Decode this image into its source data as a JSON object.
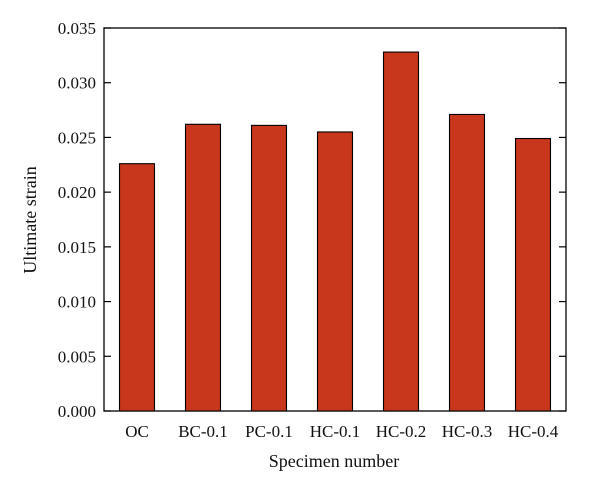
{
  "chart_data": {
    "type": "bar",
    "xlabel": "Specimen number",
    "ylabel": "Ultimate strain",
    "categories": [
      "OC",
      "BC-0.1",
      "PC-0.1",
      "HC-0.1",
      "HC-0.2",
      "HC-0.3",
      "HC-0.4"
    ],
    "values": [
      0.0226,
      0.0262,
      0.0261,
      0.0255,
      0.0328,
      0.0271,
      0.0249
    ],
    "ylim": [
      0,
      0.035
    ],
    "yticks": [
      "0.000",
      "0.005",
      "0.010",
      "0.015",
      "0.020",
      "0.025",
      "0.030",
      "0.035"
    ],
    "grid": false,
    "legend": "none",
    "bar_color": "#C8361B"
  }
}
